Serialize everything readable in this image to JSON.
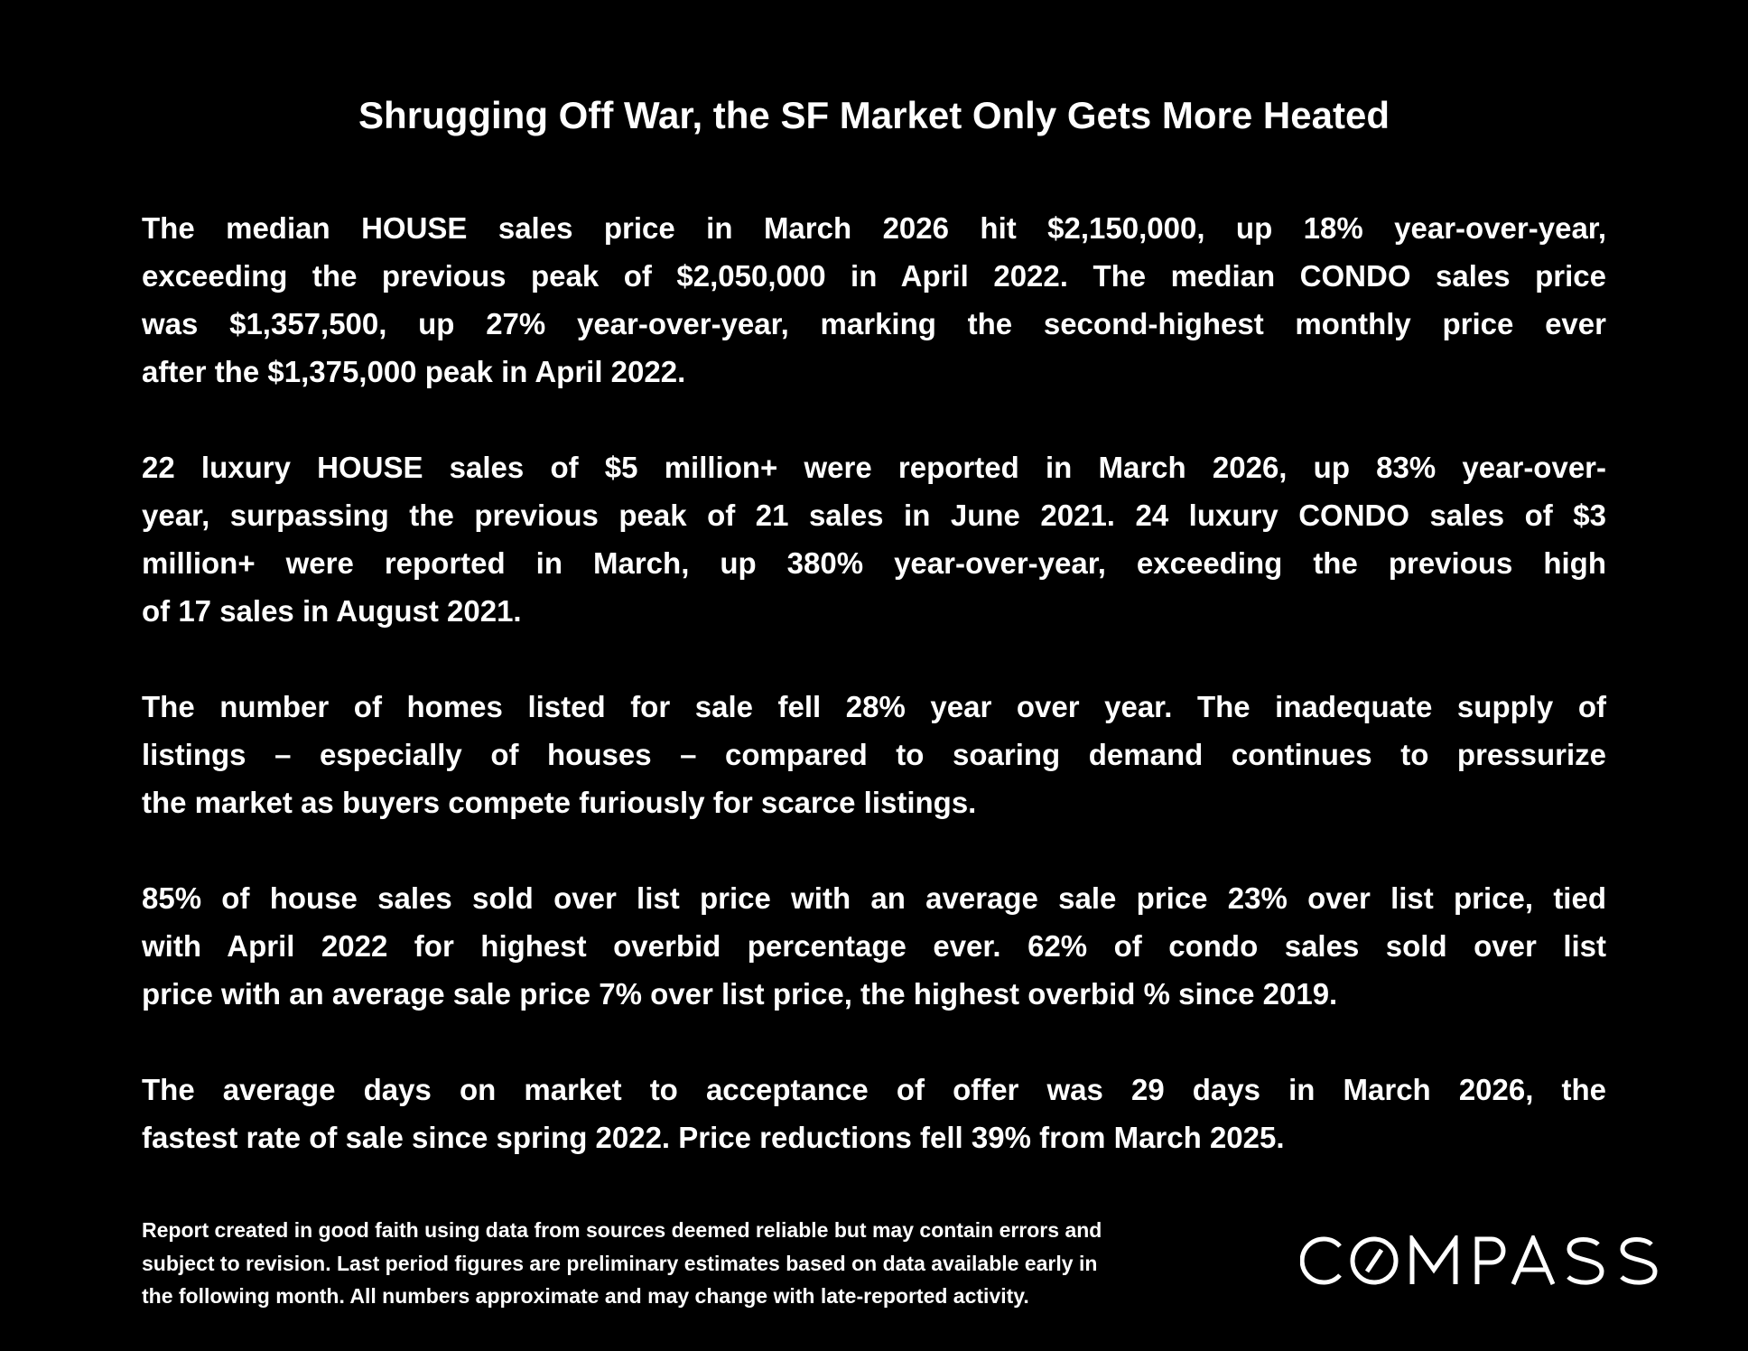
{
  "title": "Shrugging Off War, the SF Market Only Gets More Heated",
  "paragraphs": [
    {
      "lines": [
        "The median HOUSE sales price in March 2026 hit $2,150,000, up 18% year-over-year,",
        "exceeding the previous peak of $2,050,000 in April 2022. The median CONDO sales price",
        "was $1,357,500, up 27% year-over-year, marking the second-highest monthly price ever",
        "after the $1,375,000 peak in April 2022."
      ]
    },
    {
      "lines": [
        "22 luxury HOUSE sales of $5 million+ were reported in March 2026, up 83% year-over-",
        "year, surpassing the previous peak of 21 sales in June 2021. 24 luxury CONDO sales of $3",
        "million+ were reported in March, up 380% year-over-year, exceeding the previous high",
        "of 17 sales in August 2021."
      ]
    },
    {
      "lines": [
        "The number of homes listed for sale fell 28% year over year. The inadequate supply of",
        "listings – especially of houses – compared to soaring demand continues to pressurize",
        "the market as buyers compete furiously for scarce listings."
      ]
    },
    {
      "lines": [
        "85% of house sales sold over list price with an average sale price 23% over list price, tied",
        "with April 2022 for highest overbid percentage ever. 62% of condo sales sold over list",
        "price with an average sale price 7% over list price, the highest overbid % since 2019."
      ]
    },
    {
      "lines": [
        "The average days on market to acceptance of offer was 29 days in March 2026, the",
        "fastest rate of sale since spring 2022. Price reductions fell 39% from March 2025."
      ]
    }
  ],
  "footer": {
    "lines": [
      "Report created in good faith using data from sources deemed reliable but may contain errors and",
      "subject to revision. Last period figures are preliminary estimates based on data available early in",
      "the following month. All numbers approximate and may change with late-reported activity."
    ]
  },
  "logo": {
    "text": "COMPASS",
    "icon": "compass-logo"
  },
  "colors": {
    "background": "#000000",
    "text": "#ffffff"
  }
}
